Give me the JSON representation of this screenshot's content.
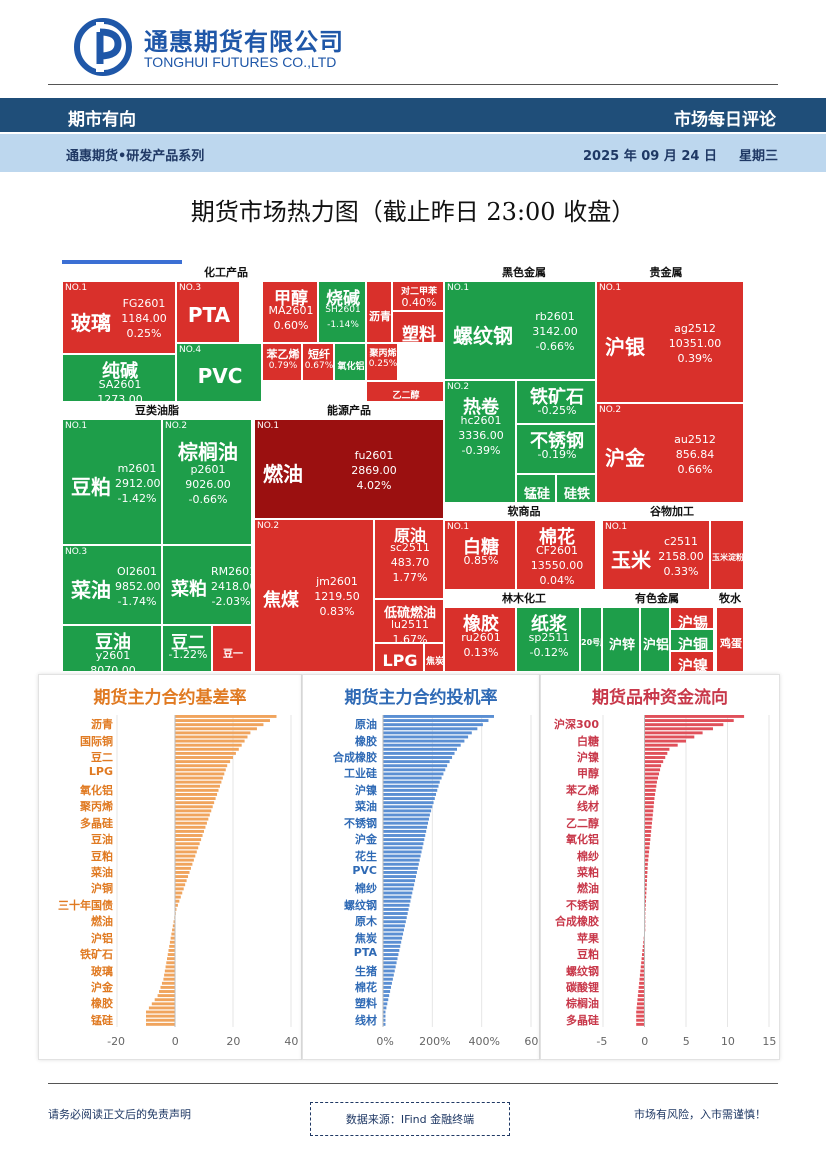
{
  "header": {
    "company_cn": "通惠期货有限公司",
    "company_en": "TONGHUI FUTURES CO.,LTD",
    "column_title": "期市有向",
    "report_type": "市场每日评论",
    "series": "通惠期货•研发产品系列",
    "date": "2025 年 09 月 24 日",
    "weekday": "星期三"
  },
  "headline": "期货市场热力图（截止昨日 23:00 收盘）",
  "colors": {
    "up": "#d9302b",
    "up_dark": "#9b1010",
    "down": "#1e9e4a",
    "navy": "#1f4e79",
    "light_blue": "#bdd7ee",
    "orange": "#f0a45d",
    "blue": "#5b8fd3",
    "red": "#e0505a"
  },
  "heatmap": {
    "sectors": [
      {
        "label": "化工产品"
      },
      {
        "label": "黑色金属"
      },
      {
        "label": "贵金属"
      },
      {
        "label": "豆类油脂"
      },
      {
        "label": "能源产品"
      },
      {
        "label": "软商品"
      },
      {
        "label": "谷物加工"
      },
      {
        "label": "林木化工"
      },
      {
        "label": "有色金属"
      },
      {
        "label": "牧水"
      }
    ],
    "tiles": [
      {
        "no": "NO.1",
        "name": "玻璃",
        "code": "FG2601",
        "price": "1184.00",
        "chg": "0.25%",
        "dir": "up"
      },
      {
        "no": "NO.3",
        "name": "PTA",
        "code": "",
        "price": "",
        "chg": "",
        "dir": "up"
      },
      {
        "no": "",
        "name": "甲醇",
        "code": "MA2601",
        "price": "",
        "chg": "0.60%",
        "dir": "up"
      },
      {
        "no": "",
        "name": "烧碱",
        "code": "SH2601",
        "price": "",
        "chg": "-1.14%",
        "dir": "down"
      },
      {
        "no": "",
        "name": "沥青",
        "code": "",
        "price": "",
        "chg": "",
        "dir": "up"
      },
      {
        "no": "",
        "name": "对二甲苯",
        "code": "",
        "price": "",
        "chg": "0.40%",
        "dir": "up"
      },
      {
        "no": "",
        "name": "塑料",
        "code": "",
        "price": "",
        "chg": "",
        "dir": "up"
      },
      {
        "no": "",
        "name": "纯碱",
        "code": "SA2601",
        "price": "1273.00",
        "chg": "-0.39%",
        "dir": "down"
      },
      {
        "no": "NO.4",
        "name": "PVC",
        "code": "",
        "price": "",
        "chg": "",
        "dir": "down"
      },
      {
        "no": "",
        "name": "苯乙烯",
        "code": "",
        "price": "",
        "chg": "0.79%",
        "dir": "up"
      },
      {
        "no": "",
        "name": "短纤",
        "code": "",
        "price": "",
        "chg": "0.67%",
        "dir": "up"
      },
      {
        "no": "",
        "name": "氧化铝",
        "code": "",
        "price": "",
        "chg": "",
        "dir": "down"
      },
      {
        "no": "",
        "name": "聚丙烯",
        "code": "",
        "price": "",
        "chg": "0.25%",
        "dir": "up"
      },
      {
        "no": "",
        "name": "乙二醇",
        "code": "",
        "price": "",
        "chg": "",
        "dir": "up"
      },
      {
        "no": "NO.1",
        "name": "螺纹钢",
        "code": "rb2601",
        "price": "3142.00",
        "chg": "-0.66%",
        "dir": "down"
      },
      {
        "no": "NO.2",
        "name": "热卷",
        "code": "hc2601",
        "price": "3336.00",
        "chg": "-0.39%",
        "dir": "down"
      },
      {
        "no": "",
        "name": "铁矿石",
        "code": "",
        "price": "",
        "chg": "-0.25%",
        "dir": "down"
      },
      {
        "no": "",
        "name": "不锈钢",
        "code": "",
        "price": "",
        "chg": "-0.19%",
        "dir": "down"
      },
      {
        "no": "",
        "name": "锰硅",
        "code": "",
        "price": "",
        "chg": "",
        "dir": "down"
      },
      {
        "no": "",
        "name": "硅铁",
        "code": "",
        "price": "",
        "chg": "",
        "dir": "down"
      },
      {
        "no": "NO.1",
        "name": "沪银",
        "code": "ag2512",
        "price": "10351.00",
        "chg": "0.39%",
        "dir": "up"
      },
      {
        "no": "NO.2",
        "name": "沪金",
        "code": "au2512",
        "price": "856.84",
        "chg": "0.66%",
        "dir": "up"
      },
      {
        "no": "NO.1",
        "name": "豆粕",
        "code": "m2601",
        "price": "2912.00",
        "chg": "-1.42%",
        "dir": "down"
      },
      {
        "no": "NO.2",
        "name": "棕榈油",
        "code": "p2601",
        "price": "9026.00",
        "chg": "-0.66%",
        "dir": "down"
      },
      {
        "no": "NO.3",
        "name": "菜油",
        "code": "OI2601",
        "price": "9852.00",
        "chg": "-1.74%",
        "dir": "down"
      },
      {
        "no": "",
        "name": "菜粕",
        "code": "RM2601",
        "price": "2418.00",
        "chg": "-2.03%",
        "dir": "down"
      },
      {
        "no": "",
        "name": "豆油",
        "code": "y2601",
        "price": "8070.00",
        "chg": "-0.81%",
        "dir": "down"
      },
      {
        "no": "",
        "name": "豆二",
        "code": "",
        "price": "",
        "chg": "-1.22%",
        "dir": "down"
      },
      {
        "no": "",
        "name": "豆一",
        "code": "",
        "price": "",
        "chg": "",
        "dir": "up"
      },
      {
        "no": "NO.1",
        "name": "燃油",
        "code": "fu2601",
        "price": "2869.00",
        "chg": "4.02%",
        "dir": "upd"
      },
      {
        "no": "NO.2",
        "name": "焦煤",
        "code": "jm2601",
        "price": "1219.50",
        "chg": "0.83%",
        "dir": "up"
      },
      {
        "no": "",
        "name": "原油",
        "code": "sc2511",
        "price": "483.70",
        "chg": "1.77%",
        "dir": "up"
      },
      {
        "no": "",
        "name": "低硫燃油",
        "code": "lu2511",
        "price": "",
        "chg": "1.67%",
        "dir": "up"
      },
      {
        "no": "",
        "name": "LPG",
        "code": "",
        "price": "",
        "chg": "",
        "dir": "up"
      },
      {
        "no": "",
        "name": "焦炭",
        "code": "",
        "price": "",
        "chg": "",
        "dir": "up"
      },
      {
        "no": "NO.1",
        "name": "白糖",
        "code": "",
        "price": "",
        "chg": "0.85%",
        "dir": "up"
      },
      {
        "no": "",
        "name": "棉花",
        "code": "CF2601",
        "price": "13550.00",
        "chg": "0.04%",
        "dir": "up"
      },
      {
        "no": "NO.1",
        "name": "玉米",
        "code": "c2511",
        "price": "2158.00",
        "chg": "0.33%",
        "dir": "up"
      },
      {
        "no": "NO.2",
        "name": "玉米淀粉",
        "code": "",
        "price": "",
        "chg": "",
        "dir": "up"
      },
      {
        "no": "",
        "name": "橡胶",
        "code": "ru2601",
        "price": "",
        "chg": "0.13%",
        "dir": "up"
      },
      {
        "no": "",
        "name": "纸浆",
        "code": "sp2511",
        "price": "",
        "chg": "-0.12%",
        "dir": "down"
      },
      {
        "no": "",
        "name": "20号胶",
        "code": "",
        "price": "",
        "chg": "",
        "dir": "down"
      },
      {
        "no": "NO.1",
        "name": "沪锌",
        "code": "",
        "price": "",
        "chg": "",
        "dir": "down"
      },
      {
        "no": "NO.2",
        "name": "沪铝",
        "code": "",
        "price": "",
        "chg": "",
        "dir": "down"
      },
      {
        "no": "",
        "name": "沪锡",
        "code": "",
        "price": "",
        "chg": "",
        "dir": "up"
      },
      {
        "no": "",
        "name": "沪铜",
        "code": "",
        "price": "",
        "chg": "",
        "dir": "down"
      },
      {
        "no": "",
        "name": "沪镍",
        "code": "",
        "price": "",
        "chg": "",
        "dir": "up"
      },
      {
        "no": "NO.1",
        "name": "鸡蛋",
        "code": "",
        "price": "",
        "chg": "",
        "dir": "up"
      }
    ]
  },
  "chart_data": [
    {
      "type": "bar",
      "orientation": "horizontal",
      "title": "期货主力合约基差率",
      "categories": [
        "沥青",
        "国际铜",
        "豆二",
        "LPG",
        "氧化铝",
        "聚丙烯",
        "多晶硅",
        "豆油",
        "豆粕",
        "菜油",
        "沪铜",
        "三十年国债",
        "燃油",
        "沪铝",
        "铁矿石",
        "玻璃",
        "沪金",
        "橡胶",
        "锰硅"
      ],
      "values": [
        35,
        26,
        22,
        18,
        16,
        14,
        12,
        10,
        8,
        6,
        4,
        2,
        0,
        -1,
        -2,
        -3,
        -4,
        -6,
        -10
      ],
      "xticks": [
        "-20",
        "0",
        "20",
        "40"
      ],
      "xlim": [
        -20,
        40
      ]
    },
    {
      "type": "bar",
      "orientation": "horizontal",
      "title": "期货主力合约投机率",
      "categories": [
        "原油",
        "橡胶",
        "合成橡胶",
        "工业硅",
        "沪镍",
        "菜油",
        "不锈钢",
        "沪金",
        "花生",
        "PVC",
        "棉纱",
        "螺纹钢",
        "原木",
        "焦炭",
        "PTA",
        "生猪",
        "棉花",
        "塑料",
        "线材"
      ],
      "values": [
        450,
        360,
        300,
        260,
        230,
        210,
        190,
        175,
        160,
        145,
        130,
        115,
        100,
        85,
        70,
        55,
        40,
        25,
        10
      ],
      "xticks": [
        "0%",
        "200%",
        "400%",
        "60"
      ],
      "xlim": [
        0,
        600
      ]
    },
    {
      "type": "bar",
      "orientation": "horizontal",
      "title": "期货品种资金流向",
      "categories": [
        "沪深300",
        "白糖",
        "沪镍",
        "甲醇",
        "苯乙烯",
        "线材",
        "乙二醇",
        "氧化铝",
        "棉纱",
        "菜粕",
        "燃油",
        "不锈钢",
        "合成橡胶",
        "苹果",
        "豆粕",
        "螺纹钢",
        "碳酸锂",
        "棕榈油",
        "多晶硅"
      ],
      "values": [
        12,
        7,
        3,
        2,
        1.5,
        1.2,
        1,
        0.8,
        0.6,
        0.4,
        0.3,
        0.2,
        0.1,
        0,
        -0.2,
        -0.4,
        -0.6,
        -0.8,
        -1
      ],
      "xticks": [
        "-5",
        "0",
        "5",
        "10",
        "15"
      ],
      "xlim": [
        -5,
        15
      ]
    }
  ],
  "footer": {
    "disclaimer": "请务必阅读正文后的免责声明",
    "source": "数据来源：IFind 金融终端",
    "risk": "市场有风险，入市需谨慎！"
  }
}
